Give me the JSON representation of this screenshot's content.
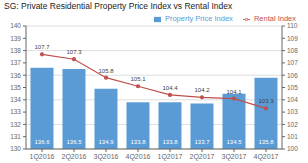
{
  "chart_data": {
    "type": "bar",
    "title": "SG: Private Residential Property Price Index vs Rental Index",
    "categories": [
      "1Q2016",
      "2Q2016",
      "3Q2016",
      "4Q2016",
      "1Q2017",
      "2Q2017",
      "3Q2017",
      "4Q2017"
    ],
    "series": [
      {
        "name": "Property Price Index",
        "type": "bar",
        "color": "#5b9bd5",
        "values": [
          136.6,
          136.5,
          134.9,
          133.8,
          133.8,
          133.7,
          134.5,
          135.8
        ]
      },
      {
        "name": "Rental Index",
        "type": "line",
        "axis": "y2",
        "color": "#c0504d",
        "marker": "o",
        "values": [
          107.7,
          107.3,
          105.8,
          105.1,
          104.4,
          104.2,
          104.1,
          103.3
        ]
      }
    ],
    "ylim": [
      130,
      140
    ],
    "yticks": [
      130,
      131,
      132,
      133,
      134,
      135,
      136,
      137,
      138,
      139,
      140
    ],
    "y2lim": [
      100,
      110
    ],
    "y2ticks": [
      100,
      101,
      102,
      103,
      104,
      105,
      106,
      107,
      108,
      109,
      110
    ],
    "grid": true,
    "legend": "upper right",
    "data_labels": true
  }
}
